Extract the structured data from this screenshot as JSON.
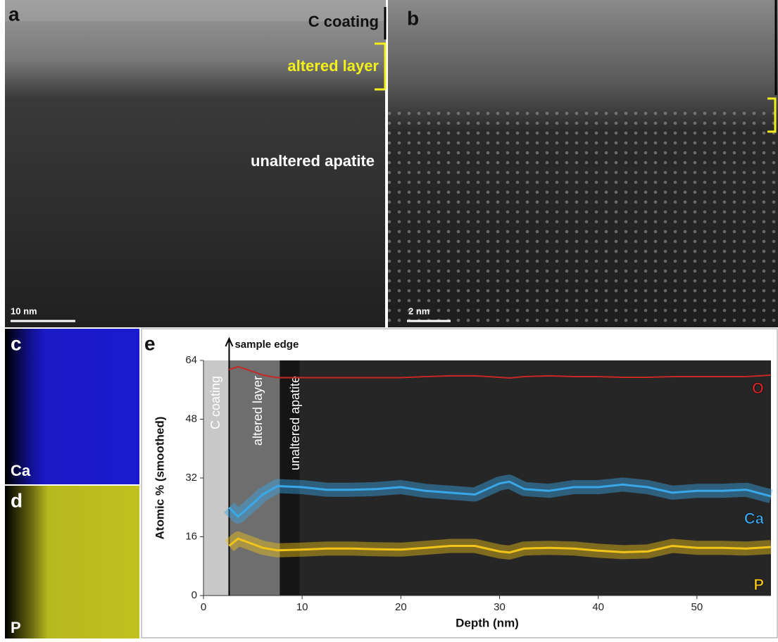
{
  "panels": {
    "a": {
      "label": "a",
      "annotations": [
        "C coating",
        "altered layer",
        "unaltered apatite"
      ],
      "scale_bar": "10 nm"
    },
    "b": {
      "label": "b",
      "scale_bar": "2 nm"
    },
    "c": {
      "label": "c",
      "element": "Ca"
    },
    "d": {
      "label": "d",
      "element": "P"
    },
    "e": {
      "label": "e"
    }
  },
  "chart_data": {
    "type": "line",
    "xlabel": "Depth (nm)",
    "ylabel": "Atomic % (smoothed)",
    "sample_edge": {
      "label": "sample edge",
      "x": 2.6
    },
    "regions": [
      "C coating",
      "altered layer",
      "unaltered apatite"
    ],
    "xlim": [
      0,
      57.5
    ],
    "ylim": [
      0,
      64
    ],
    "xticks": [
      0,
      10,
      20,
      30,
      40,
      50
    ],
    "yticks": [
      0,
      16,
      32,
      48,
      64
    ],
    "x": [
      2.6,
      3.5,
      5,
      6,
      7.5,
      10,
      12.5,
      15,
      17.5,
      20,
      22.5,
      25,
      27.5,
      30,
      31,
      32.5,
      35,
      37.5,
      40,
      42.5,
      45,
      47.5,
      50,
      52.5,
      55,
      57.5
    ],
    "series": [
      {
        "name": "O",
        "color": "#c62828",
        "values": [
          61.5,
          62.3,
          61,
          60,
          59.3,
          59.3,
          59.3,
          59.3,
          59.3,
          59.3,
          59.6,
          59.8,
          59.8,
          59.4,
          59.2,
          59.6,
          59.8,
          59.6,
          59.6,
          59.4,
          59.4,
          59.6,
          59.6,
          59.6,
          59.6,
          60
        ]
      },
      {
        "name": "Ca",
        "color": "#3aa8e8",
        "values": [
          24,
          21.5,
          25,
          27.5,
          29.8,
          29.5,
          28.8,
          28.8,
          29,
          29.5,
          28.5,
          28,
          27.5,
          30.5,
          31,
          29,
          28.5,
          29.5,
          29.5,
          30.2,
          29.5,
          28,
          28.5,
          28.5,
          28.8,
          27
        ]
      },
      {
        "name": "P",
        "color": "#f0c419",
        "values": [
          13.5,
          15.5,
          14,
          13,
          12.3,
          12.5,
          12.8,
          12.8,
          12.6,
          12.5,
          13,
          13.5,
          13.5,
          12,
          11.7,
          12.8,
          13,
          12.8,
          12.2,
          11.8,
          12,
          13.5,
          13,
          13,
          12.8,
          13.2
        ]
      }
    ]
  }
}
